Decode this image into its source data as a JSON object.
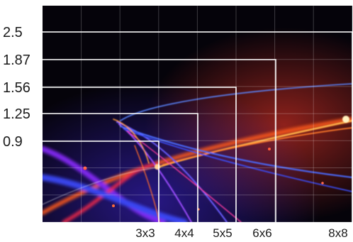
{
  "chart_data": {
    "type": "chart",
    "title": "",
    "xlabel": "",
    "ylabel": "",
    "y_tick_labels": [
      "2.5",
      "1.87",
      "1.56",
      "1.25",
      "0.9"
    ],
    "x_tick_labels": [
      "3x3",
      "4x4",
      "5x5",
      "6x6",
      "8x8"
    ],
    "frames": [
      {
        "grid": "3x3",
        "level": "0.9"
      },
      {
        "grid": "4x4",
        "level": "1.25"
      },
      {
        "grid": "5x5",
        "level": "1.56"
      },
      {
        "grid": "6x6",
        "level": "1.87"
      },
      {
        "grid": "8x8",
        "level": "2.5"
      }
    ],
    "grid": true,
    "background": "dark image with light streaks",
    "colors": {
      "background": "#05030a",
      "gridline": "#ffffff",
      "frame": "#ffffff",
      "streak_orange": "#ff8a2a",
      "streak_blue": "#3f6bff",
      "streak_purple": "#b03cff",
      "streak_red": "#ff2a3a"
    }
  }
}
